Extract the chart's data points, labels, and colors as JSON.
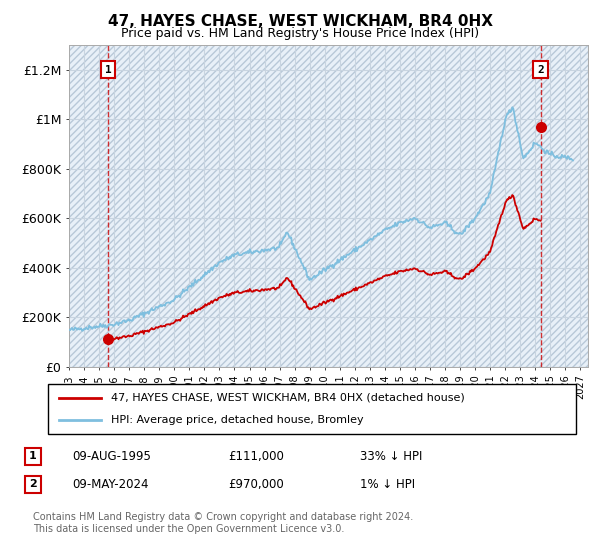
{
  "title": "47, HAYES CHASE, WEST WICKHAM, BR4 0HX",
  "subtitle": "Price paid vs. HM Land Registry's House Price Index (HPI)",
  "ylabel_ticks": [
    "£0",
    "£200K",
    "£400K",
    "£600K",
    "£800K",
    "£1M",
    "£1.2M"
  ],
  "ytick_values": [
    0,
    200000,
    400000,
    600000,
    800000,
    1000000,
    1200000
  ],
  "ylim": [
    0,
    1300000
  ],
  "xlim_start": 1993.0,
  "xlim_end": 2027.5,
  "hpi_color": "#7fbfdf",
  "price_color": "#cc0000",
  "bg_color": "#e8f0f8",
  "grid_color": "#c8d4e0",
  "sale1_date": 1995.6,
  "sale1_price": 111000,
  "sale2_date": 2024.36,
  "sale2_price": 970000,
  "legend_label1": "47, HAYES CHASE, WEST WICKHAM, BR4 0HX (detached house)",
  "legend_label2": "HPI: Average price, detached house, Bromley",
  "annotation1": "1",
  "annotation2": "2",
  "note1_label": "1",
  "note1_date": "09-AUG-1995",
  "note1_price": "£111,000",
  "note1_hpi": "33% ↓ HPI",
  "note2_label": "2",
  "note2_date": "09-MAY-2024",
  "note2_price": "£970,000",
  "note2_hpi": "1% ↓ HPI",
  "footer": "Contains HM Land Registry data © Crown copyright and database right 2024.\nThis data is licensed under the Open Government Licence v3.0."
}
